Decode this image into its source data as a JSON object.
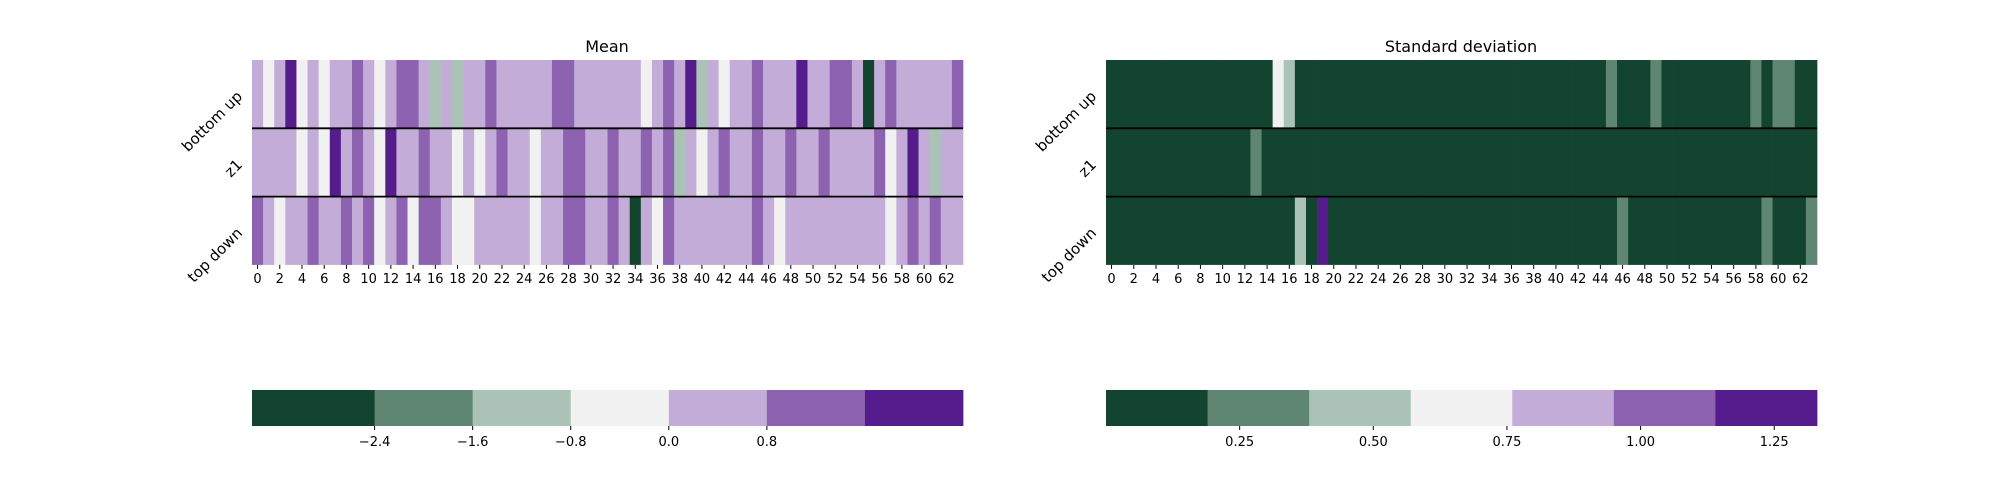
{
  "palette": [
    "#134430",
    "#5f8672",
    "#aac3b6",
    "#f1f1f1",
    "#c4acd9",
    "#8d63b1",
    "#551c8b"
  ],
  "chart_data": [
    {
      "type": "heatmap",
      "title": "Mean",
      "rows": [
        "bottom up",
        "z1",
        "top down"
      ],
      "x_tick_labels": [
        "0",
        "2",
        "4",
        "6",
        "8",
        "10",
        "12",
        "14",
        "16",
        "18",
        "20",
        "22",
        "24",
        "26",
        "28",
        "30",
        "32",
        "34",
        "36",
        "38",
        "40",
        "42",
        "44",
        "46",
        "48",
        "50",
        "52",
        "54",
        "56",
        "58",
        "60",
        "62"
      ],
      "n_columns": 64,
      "colorbar": {
        "bin_edges": [
          -3.4,
          -2.4,
          -1.6,
          -0.8,
          0.0,
          0.8,
          1.6,
          2.4
        ],
        "tick_values": [
          -2.4,
          -1.6,
          -0.8,
          0.0,
          0.8
        ],
        "tick_labels": [
          "−2.4",
          "−1.6",
          "−0.8",
          "0.0",
          "0.8"
        ]
      },
      "bins": [
        [
          4,
          3,
          4,
          6,
          3,
          4,
          3,
          4,
          4,
          5,
          4,
          3,
          4,
          5,
          5,
          4,
          2,
          4,
          2,
          4,
          4,
          5,
          4,
          4,
          4,
          4,
          4,
          5,
          5,
          4,
          4,
          4,
          4,
          4,
          4,
          3,
          4,
          5,
          4,
          6,
          2,
          4,
          3,
          4,
          4,
          5,
          4,
          4,
          4,
          6,
          4,
          4,
          5,
          5,
          4,
          0,
          4,
          5,
          4,
          4,
          4,
          4,
          4,
          5
        ],
        [
          4,
          4,
          4,
          4,
          3,
          4,
          3,
          6,
          4,
          5,
          4,
          3,
          6,
          4,
          4,
          5,
          4,
          4,
          3,
          4,
          3,
          4,
          5,
          4,
          4,
          3,
          4,
          4,
          5,
          5,
          4,
          4,
          5,
          4,
          4,
          5,
          4,
          5,
          2,
          4,
          3,
          4,
          5,
          4,
          4,
          5,
          4,
          4,
          5,
          4,
          4,
          5,
          4,
          4,
          4,
          4,
          5,
          3,
          4,
          6,
          4,
          2,
          4,
          4
        ],
        [
          5,
          4,
          3,
          4,
          4,
          5,
          4,
          4,
          5,
          4,
          5,
          3,
          4,
          5,
          3,
          5,
          5,
          4,
          3,
          3,
          4,
          4,
          4,
          4,
          4,
          3,
          4,
          4,
          5,
          5,
          4,
          4,
          5,
          4,
          0,
          4,
          3,
          5,
          4,
          4,
          4,
          4,
          4,
          4,
          4,
          5,
          4,
          3,
          4,
          4,
          4,
          4,
          4,
          4,
          4,
          4,
          4,
          3,
          4,
          5,
          4,
          5,
          4,
          4
        ]
      ]
    },
    {
      "type": "heatmap",
      "title": "Standard deviation",
      "rows": [
        "bottom up",
        "z1",
        "top down"
      ],
      "x_tick_labels": [
        "0",
        "2",
        "4",
        "6",
        "8",
        "10",
        "12",
        "14",
        "16",
        "18",
        "20",
        "22",
        "24",
        "26",
        "28",
        "30",
        "32",
        "34",
        "36",
        "38",
        "40",
        "42",
        "44",
        "46",
        "48",
        "50",
        "52",
        "54",
        "56",
        "58",
        "60",
        "62"
      ],
      "n_columns": 64,
      "colorbar": {
        "bin_edges": [
          0.0,
          0.19,
          0.38,
          0.57,
          0.76,
          0.95,
          1.14,
          1.33
        ],
        "tick_values": [
          0.25,
          0.5,
          0.75,
          1.0,
          1.25
        ],
        "tick_labels": [
          "0.25",
          "0.50",
          "0.75",
          "1.00",
          "1.25"
        ]
      },
      "bins": [
        [
          0,
          0,
          0,
          0,
          0,
          0,
          0,
          0,
          0,
          0,
          0,
          0,
          0,
          0,
          0,
          3,
          2,
          0,
          0,
          0,
          0,
          0,
          0,
          0,
          0,
          0,
          0,
          0,
          0,
          0,
          0,
          0,
          0,
          0,
          0,
          0,
          0,
          0,
          0,
          0,
          0,
          0,
          0,
          0,
          0,
          1,
          0,
          0,
          0,
          1,
          0,
          0,
          0,
          0,
          0,
          0,
          0,
          0,
          1,
          0,
          1,
          1,
          0,
          0
        ],
        [
          0,
          0,
          0,
          0,
          0,
          0,
          0,
          0,
          0,
          0,
          0,
          0,
          0,
          1,
          0,
          0,
          0,
          0,
          0,
          0,
          0,
          0,
          0,
          0,
          0,
          0,
          0,
          0,
          0,
          0,
          0,
          0,
          0,
          0,
          0,
          0,
          0,
          0,
          0,
          0,
          0,
          0,
          0,
          0,
          0,
          0,
          0,
          0,
          0,
          0,
          0,
          0,
          0,
          0,
          0,
          0,
          0,
          0,
          0,
          0,
          0,
          0,
          0,
          0
        ],
        [
          0,
          0,
          0,
          0,
          0,
          0,
          0,
          0,
          0,
          0,
          0,
          0,
          0,
          0,
          0,
          0,
          0,
          2,
          0,
          6,
          0,
          0,
          0,
          0,
          0,
          0,
          0,
          0,
          0,
          0,
          0,
          0,
          0,
          0,
          0,
          0,
          0,
          0,
          0,
          0,
          0,
          0,
          0,
          0,
          0,
          0,
          1,
          0,
          0,
          0,
          0,
          0,
          0,
          0,
          0,
          0,
          0,
          0,
          0,
          1,
          0,
          0,
          0,
          1
        ]
      ]
    }
  ]
}
